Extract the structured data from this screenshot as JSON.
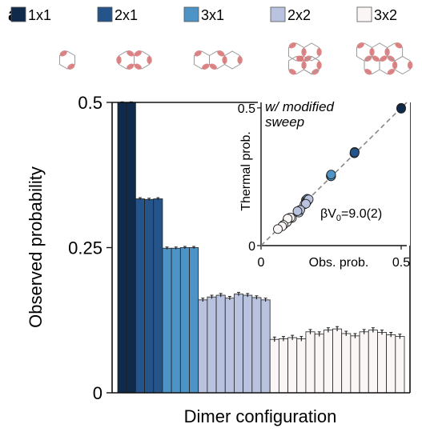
{
  "panel_label": "a",
  "legend": [
    {
      "label": "1x1",
      "color": "#0f2a4a"
    },
    {
      "label": "2x1",
      "color": "#24548a"
    },
    {
      "label": "3x1",
      "color": "#4e93c6"
    },
    {
      "label": "2x2",
      "color": "#b9c2de"
    },
    {
      "label": "3x2",
      "color": "#fbf6f6"
    }
  ],
  "chart_data": [
    {
      "type": "bar",
      "xlabel": "Dimer configuration",
      "ylabel": "Observed probability",
      "ylim": [
        0,
        0.5
      ],
      "yticks": [
        0,
        0.25,
        0.5
      ],
      "ytick_labels": [
        "0",
        "0.25",
        "0.5"
      ],
      "series": [
        {
          "name": "1x1",
          "color": "#0f2a4a",
          "values": [
            0.5,
            0.5
          ],
          "errors": [
            0.001,
            0.001
          ]
        },
        {
          "name": "2x1",
          "color": "#24548a",
          "values": [
            0.334,
            0.333,
            0.334
          ],
          "errors": [
            0.002,
            0.002,
            0.002
          ]
        },
        {
          "name": "3x1",
          "color": "#4e93c6",
          "values": [
            0.249,
            0.249,
            0.25,
            0.25
          ],
          "errors": [
            0.002,
            0.002,
            0.002,
            0.002
          ]
        },
        {
          "name": "2x2",
          "color": "#b9c2de",
          "values": [
            0.16,
            0.165,
            0.168,
            0.163,
            0.17,
            0.168,
            0.164,
            0.16
          ],
          "errors": [
            0.003,
            0.003,
            0.003,
            0.003,
            0.003,
            0.003,
            0.003,
            0.003
          ]
        },
        {
          "name": "3x2",
          "color": "#fbf6f6",
          "values": [
            0.092,
            0.093,
            0.095,
            0.093,
            0.105,
            0.101,
            0.108,
            0.11,
            0.102,
            0.098,
            0.105,
            0.108,
            0.104,
            0.1,
            0.097
          ],
          "errors": [
            0.004,
            0.004,
            0.004,
            0.004,
            0.004,
            0.004,
            0.004,
            0.004,
            0.004,
            0.004,
            0.004,
            0.004,
            0.004,
            0.004,
            0.004
          ]
        }
      ]
    },
    {
      "type": "scatter",
      "xlabel": "Obs. prob.",
      "ylabel": "Thermal prob.",
      "xlim": [
        0,
        0.52
      ],
      "ylim": [
        0,
        0.52
      ],
      "xtick_labels": [
        "0",
        "0.5"
      ],
      "ytick_labels": [
        "0",
        "0.5"
      ],
      "annotation_title": "w/ modified sweep",
      "fit_label": "βV",
      "fit_label_sub": "0",
      "fit_label_value": "=9.0(2)",
      "diagonal": true,
      "points": [
        {
          "x": 0.5,
          "y": 0.5,
          "c": "#0f2a4a"
        },
        {
          "x": 0.5,
          "y": 0.497,
          "c": "#0f2a4a"
        },
        {
          "x": 0.334,
          "y": 0.34,
          "c": "#24548a"
        },
        {
          "x": 0.333,
          "y": 0.335,
          "c": "#24548a"
        },
        {
          "x": 0.334,
          "y": 0.338,
          "c": "#24548a"
        },
        {
          "x": 0.25,
          "y": 0.255,
          "c": "#24548a"
        },
        {
          "x": 0.249,
          "y": 0.252,
          "c": "#4e93c6"
        },
        {
          "x": 0.249,
          "y": 0.255,
          "c": "#4e93c6"
        },
        {
          "x": 0.25,
          "y": 0.252,
          "c": "#4e93c6"
        },
        {
          "x": 0.25,
          "y": 0.258,
          "c": "#4e93c6"
        },
        {
          "x": 0.16,
          "y": 0.165,
          "c": "#4e93c6"
        },
        {
          "x": 0.162,
          "y": 0.16,
          "c": "#4e93c6"
        },
        {
          "x": 0.165,
          "y": 0.17,
          "c": "#4e93c6"
        },
        {
          "x": 0.155,
          "y": 0.15,
          "c": "#b9c2de"
        },
        {
          "x": 0.168,
          "y": 0.165,
          "c": "#b9c2de"
        },
        {
          "x": 0.163,
          "y": 0.158,
          "c": "#b9c2de"
        },
        {
          "x": 0.17,
          "y": 0.168,
          "c": "#b9c2de"
        },
        {
          "x": 0.16,
          "y": 0.152,
          "c": "#b9c2de"
        },
        {
          "x": 0.135,
          "y": 0.12,
          "c": "#b9c2de"
        },
        {
          "x": 0.14,
          "y": 0.13,
          "c": "#b9c2de"
        },
        {
          "x": 0.13,
          "y": 0.125,
          "c": "#b9c2de"
        },
        {
          "x": 0.11,
          "y": 0.1,
          "c": "#fbf6f6"
        },
        {
          "x": 0.1,
          "y": 0.1,
          "c": "#fbf6f6"
        },
        {
          "x": 0.098,
          "y": 0.095,
          "c": "#fbf6f6"
        },
        {
          "x": 0.093,
          "y": 0.09,
          "c": "#fbf6f6"
        },
        {
          "x": 0.105,
          "y": 0.102,
          "c": "#fbf6f6"
        },
        {
          "x": 0.092,
          "y": 0.085,
          "c": "#fbf6f6"
        },
        {
          "x": 0.095,
          "y": 0.098,
          "c": "#fbf6f6"
        },
        {
          "x": 0.08,
          "y": 0.075,
          "c": "#fbf6f6"
        },
        {
          "x": 0.075,
          "y": 0.07,
          "c": "#fbf6f6"
        },
        {
          "x": 0.06,
          "y": 0.06,
          "c": "#fbf6f6"
        }
      ]
    }
  ]
}
